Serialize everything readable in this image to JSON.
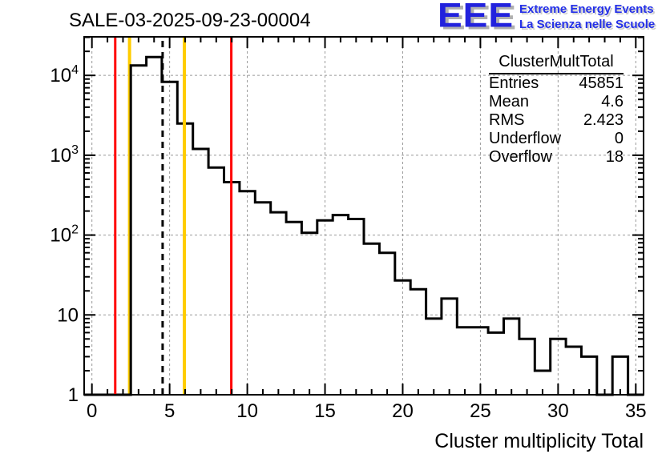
{
  "page": {
    "background": "#ffffff"
  },
  "title": "SALE-03-2025-09-23-00004",
  "logo": {
    "acronym": "EEE",
    "line1": "Extreme Energy Events",
    "line2": "La Scienza nelle Scuole",
    "blue": "#2222dd",
    "shadow": "#b0b0b0"
  },
  "stats_box": {
    "title": "ClusterMultTotal",
    "rows": [
      {
        "label": "Entries",
        "value": "45851"
      },
      {
        "label": "Mean",
        "value": "4.6"
      },
      {
        "label": "RMS",
        "value": "2.423"
      },
      {
        "label": "Underflow",
        "value": "0"
      },
      {
        "label": "Overflow",
        "value": "18"
      }
    ]
  },
  "chart_data": {
    "type": "bar",
    "subtype": "step-histogram",
    "title": "SALE-03-2025-09-23-00004",
    "histogram_name": "ClusterMultTotal",
    "xlabel": "Cluster multiplicity Total",
    "ylabel": "",
    "x_range": [
      -0.5,
      35.5
    ],
    "y_scale": "log",
    "y_min": 1,
    "y_top_decades": 4.483,
    "grid": true,
    "legend": "none",
    "line_color": "#000000",
    "bin_width": 1,
    "bin_centers": [
      0,
      1,
      2,
      3,
      4,
      5,
      6,
      7,
      8,
      9,
      10,
      11,
      12,
      13,
      14,
      15,
      16,
      17,
      18,
      19,
      20,
      21,
      22,
      23,
      24,
      25,
      26,
      27,
      28,
      29,
      30,
      31,
      32,
      33,
      34,
      35
    ],
    "counts": [
      0,
      0,
      0,
      13300,
      17000,
      8300,
      2500,
      1200,
      700,
      460,
      355,
      257,
      193,
      146,
      107,
      153,
      178,
      159,
      78,
      60,
      27,
      21,
      9,
      16,
      7,
      7,
      6,
      9,
      5,
      2,
      5,
      4,
      3,
      0,
      3,
      0
    ],
    "x_ticks_major": [
      0,
      5,
      10,
      15,
      20,
      25,
      30,
      35
    ],
    "y_tick_labels": [
      "1",
      "10",
      "10^2",
      "10^3",
      "10^4"
    ],
    "marker_lines": [
      {
        "name": "red-lower-limit-line",
        "x": 1.5,
        "color": "#ff0000",
        "style": "solid",
        "width": 3,
        "layer": "above"
      },
      {
        "name": "yellow-lower-limit-line",
        "x": 2.42,
        "color": "#ffcc00",
        "style": "solid",
        "width": 4,
        "layer": "below"
      },
      {
        "name": "mean-dashed-line",
        "x": 4.55,
        "color": "#000000",
        "style": "dashed",
        "width": 3,
        "layer": "above"
      },
      {
        "name": "yellow-upper-limit-line",
        "x": 5.95,
        "color": "#ffcc00",
        "style": "solid",
        "width": 4,
        "layer": "above"
      },
      {
        "name": "red-upper-limit-line",
        "x": 8.97,
        "color": "#ff0000",
        "style": "solid",
        "width": 3,
        "layer": "above"
      }
    ]
  }
}
